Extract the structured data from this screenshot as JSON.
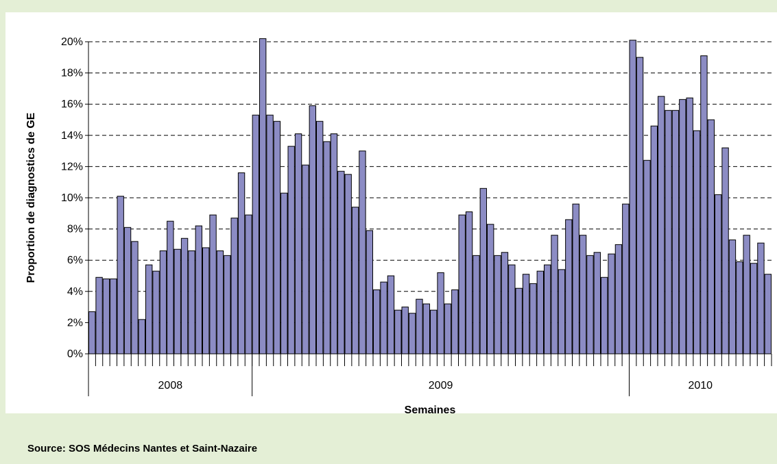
{
  "colors": {
    "bar_fill": "#8c8cc4",
    "bar_stroke": "#000000",
    "grid": "#000000",
    "background": "#e4efd6",
    "panel": "#ffffff"
  },
  "source": "Source: SOS Médecins Nantes et Saint-Nazaire",
  "chart_data": {
    "type": "bar",
    "title": "",
    "xlabel": "Semaines",
    "ylabel": "Proportion de diagnostics de GE",
    "ylim": [
      0,
      20
    ],
    "y_unit": "%",
    "y_ticks": [
      "0%",
      "2%",
      "4%",
      "6%",
      "8%",
      "10%",
      "12%",
      "14%",
      "16%",
      "18%",
      "20%"
    ],
    "grid": "horizontal dashed",
    "legend": "none",
    "year_groups": [
      {
        "label": "2008",
        "count": 23
      },
      {
        "label": "2009",
        "count": 53
      },
      {
        "label": "2010",
        "count": 20
      }
    ],
    "values": [
      2.7,
      4.9,
      4.8,
      4.8,
      10.1,
      8.1,
      7.2,
      2.2,
      5.7,
      5.3,
      6.6,
      8.5,
      6.7,
      7.4,
      6.6,
      8.2,
      6.8,
      8.9,
      6.6,
      6.3,
      8.7,
      11.6,
      8.9,
      15.3,
      20.2,
      15.3,
      14.9,
      10.3,
      13.3,
      14.1,
      12.1,
      15.9,
      14.9,
      13.6,
      14.1,
      11.7,
      11.5,
      9.4,
      13.0,
      7.9,
      4.1,
      4.6,
      5.0,
      2.8,
      3.0,
      2.6,
      3.5,
      3.2,
      2.8,
      5.2,
      3.2,
      4.1,
      8.9,
      9.1,
      6.3,
      10.6,
      8.3,
      6.3,
      6.5,
      5.7,
      4.2,
      5.1,
      4.5,
      5.3,
      5.7,
      7.6,
      5.4,
      8.6,
      9.6,
      7.6,
      6.3,
      6.5,
      4.9,
      6.4,
      7.0,
      9.6,
      20.1,
      19.0,
      12.4,
      14.6,
      16.5,
      15.6,
      15.6,
      16.3,
      16.4,
      14.3,
      19.1,
      15.0,
      10.2,
      13.2,
      7.3,
      5.9,
      7.6,
      5.8,
      7.1,
      5.1
    ]
  }
}
